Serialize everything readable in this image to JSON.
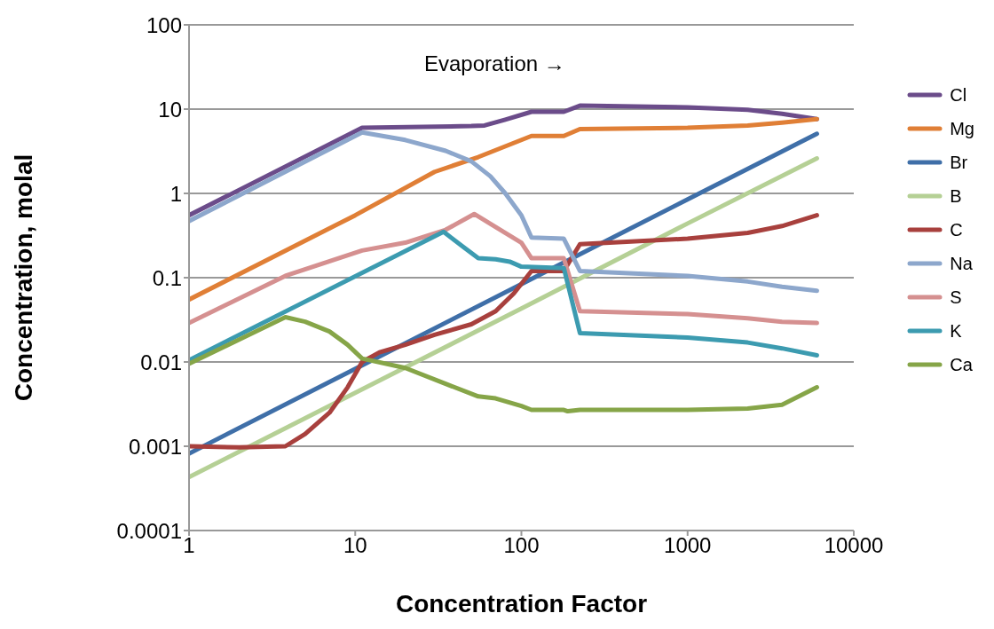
{
  "chart_data": {
    "type": "line",
    "xlabel": "Concentration Factor",
    "ylabel": "Concentration, molal",
    "annotations": [
      "Evaporation →"
    ],
    "log": "xy",
    "xlim": [
      1,
      10000
    ],
    "xticks": [
      1,
      10,
      100,
      1000,
      10000
    ],
    "ylim": [
      0.0001,
      100
    ],
    "yticks": [
      0.0001,
      0.001,
      0.01,
      0.1,
      1,
      10,
      100
    ],
    "grid": "y",
    "legend": "right",
    "marker": "none",
    "line_style": "solid",
    "series": [
      {
        "name": "Cl",
        "color": "#6b4c8a",
        "x": [
          1,
          11,
          50,
          60,
          80,
          115,
          180,
          225,
          1000,
          2300,
          3700,
          6000
        ],
        "values": [
          0.55,
          6,
          6.3,
          6.4,
          7.5,
          9.3,
          9.3,
          11,
          10.5,
          9.8,
          8.8,
          7.6
        ]
      },
      {
        "name": "Mg",
        "color": "#e07f36",
        "x": [
          1,
          10,
          30,
          55,
          115,
          180,
          225,
          1000,
          2300,
          3700,
          6000
        ],
        "values": [
          0.055,
          0.55,
          1.8,
          2.7,
          4.8,
          4.8,
          5.8,
          6,
          6.4,
          6.9,
          7.6
        ]
      },
      {
        "name": "Br",
        "color": "#3f6fa8",
        "x": [
          1,
          10,
          100,
          1000,
          6000
        ],
        "values": [
          0.00082,
          0.0083,
          0.084,
          0.85,
          5.1
        ]
      },
      {
        "name": "B",
        "color": "#b5d095",
        "x": [
          1,
          10,
          100,
          1000,
          6000
        ],
        "values": [
          0.00043,
          0.0043,
          0.043,
          0.44,
          2.6
        ]
      },
      {
        "name": "C",
        "color": "#a8403d",
        "x": [
          1,
          2,
          3.8,
          5,
          7,
          9,
          11,
          14,
          20,
          30,
          50,
          70,
          90,
          115,
          180,
          225,
          1000,
          2300,
          3700,
          6000
        ],
        "values": [
          0.001,
          0.00097,
          0.001,
          0.0014,
          0.0025,
          0.005,
          0.01,
          0.013,
          0.016,
          0.021,
          0.028,
          0.04,
          0.065,
          0.12,
          0.12,
          0.25,
          0.29,
          0.34,
          0.41,
          0.55
        ]
      },
      {
        "name": "Na",
        "color": "#8da7cc",
        "x": [
          1,
          11,
          20,
          35,
          50,
          65,
          80,
          100,
          115,
          180,
          225,
          1000,
          2300,
          3700,
          6000
        ],
        "values": [
          0.47,
          5.3,
          4.3,
          3.2,
          2.4,
          1.6,
          1,
          0.55,
          0.3,
          0.29,
          0.12,
          0.105,
          0.09,
          0.078,
          0.07
        ]
      },
      {
        "name": "S",
        "color": "#d59090",
        "x": [
          1,
          3.8,
          11,
          20,
          35,
          52,
          100,
          115,
          180,
          225,
          1000,
          2300,
          3700,
          6000
        ],
        "values": [
          0.029,
          0.105,
          0.21,
          0.26,
          0.37,
          0.57,
          0.26,
          0.17,
          0.17,
          0.04,
          0.037,
          0.033,
          0.03,
          0.029
        ]
      },
      {
        "name": "K",
        "color": "#3c9bb0",
        "x": [
          1,
          34,
          45,
          55,
          70,
          85,
          100,
          180,
          225,
          1000,
          2300,
          3700,
          6000
        ],
        "values": [
          0.0105,
          0.35,
          0.23,
          0.17,
          0.165,
          0.155,
          0.135,
          0.13,
          0.022,
          0.0195,
          0.017,
          0.0145,
          0.012
        ]
      },
      {
        "name": "Ca",
        "color": "#86a548",
        "x": [
          1,
          3.8,
          5,
          7,
          9,
          11,
          20,
          35,
          55,
          70,
          100,
          115,
          180,
          190,
          225,
          1000,
          2300,
          3700,
          6000
        ],
        "values": [
          0.0095,
          0.034,
          0.03,
          0.023,
          0.016,
          0.011,
          0.0085,
          0.0055,
          0.0039,
          0.0037,
          0.003,
          0.0027,
          0.0027,
          0.0026,
          0.0027,
          0.0027,
          0.0028,
          0.0031,
          0.005
        ]
      }
    ]
  }
}
